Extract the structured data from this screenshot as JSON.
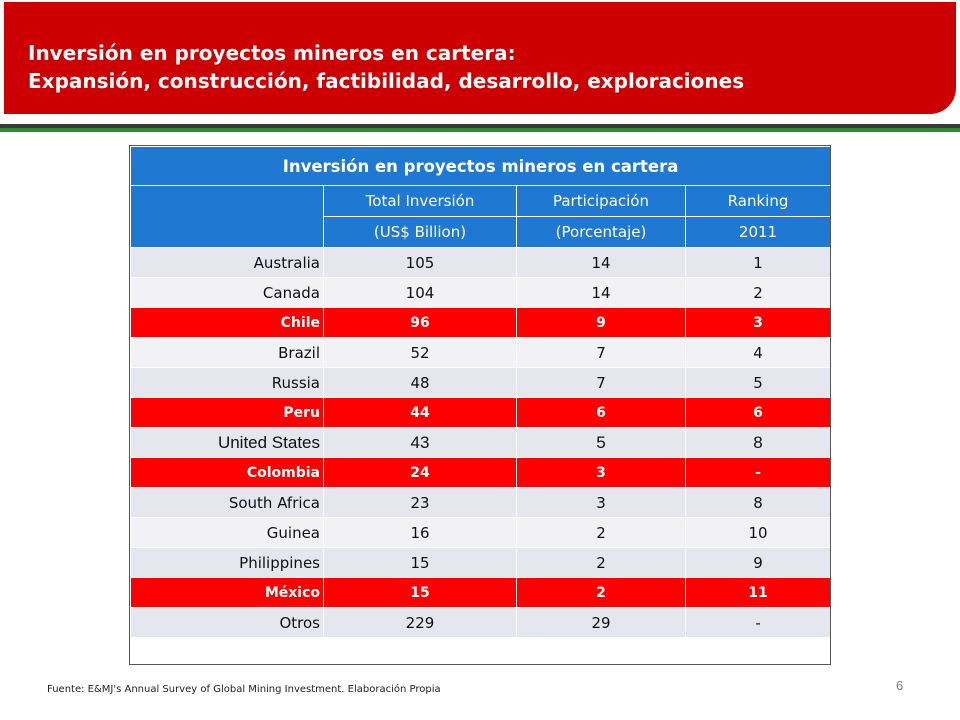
{
  "header": {
    "title": "Inversión en proyectos mineros en cartera:",
    "subtitle": "Expansión, construcción, factibilidad,  desarrollo, exploraciones",
    "banner_color": "#cc0000"
  },
  "table": {
    "title": "Inversión en proyectos mineros en cartera",
    "header_row1": [
      "",
      "Total Inversión",
      "Participación",
      "Ranking"
    ],
    "header_row2": [
      "",
      "(US$ Billion)",
      "(Porcentaje)",
      "2011"
    ],
    "header_color": "#1f78d1",
    "highlight_color": "#ff0000",
    "rows": [
      {
        "country": "Australia",
        "total": "105",
        "share": "14",
        "rank": "1",
        "highlight": false
      },
      {
        "country": "Canada",
        "total": "104",
        "share": "14",
        "rank": "2",
        "highlight": false
      },
      {
        "country": "Chile",
        "total": "96",
        "share": "9",
        "rank": "3",
        "highlight": true
      },
      {
        "country": "Brazil",
        "total": "52",
        "share": "7",
        "rank": "4",
        "highlight": false
      },
      {
        "country": "Russia",
        "total": "48",
        "share": "7",
        "rank": "5",
        "highlight": false
      },
      {
        "country": "Peru",
        "total": "44",
        "share": "6",
        "rank": "6",
        "highlight": true
      },
      {
        "country": "United States",
        "total": "43",
        "share": "5",
        "rank": "8",
        "highlight": false
      },
      {
        "country": "Colombia",
        "total": "24",
        "share": "3",
        "rank": "-",
        "highlight": true
      },
      {
        "country": "South Africa",
        "total": "23",
        "share": "3",
        "rank": "8",
        "highlight": false
      },
      {
        "country": "Guinea",
        "total": "16",
        "share": "2",
        "rank": "10",
        "highlight": false
      },
      {
        "country": "Philippines",
        "total": "15",
        "share": "2",
        "rank": "9",
        "highlight": false
      },
      {
        "country": "México",
        "total": "15",
        "share": "2",
        "rank": "11",
        "highlight": true
      },
      {
        "country": "Otros",
        "total": "229",
        "share": "29",
        "rank": "-",
        "highlight": false
      }
    ]
  },
  "footer": {
    "source": "Fuente: E&MJ's Annual Survey of Global Mining Investment. Elaboración Propia",
    "page_number": "6"
  }
}
